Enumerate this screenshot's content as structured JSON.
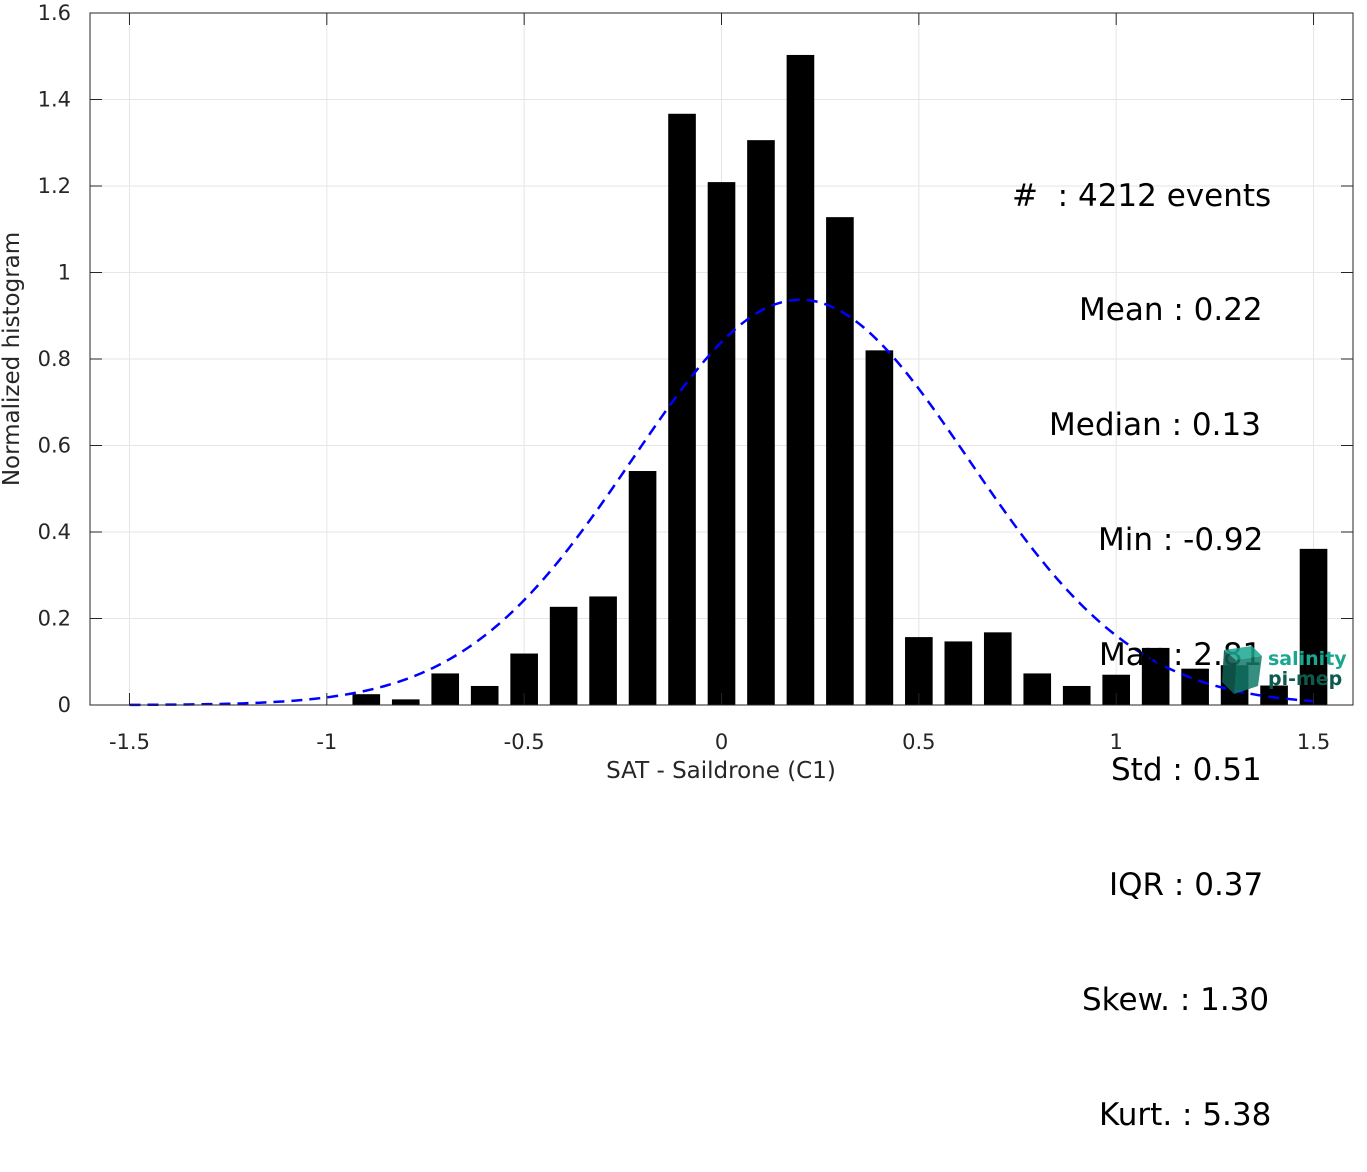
{
  "chart_data": {
    "type": "bar",
    "xlabel": "SAT - Saildrone (C1)",
    "ylabel": "Normalized histogram",
    "xlim": [
      -1.6,
      1.6
    ],
    "ylim": [
      0,
      1.6
    ],
    "grid": true,
    "xticks": [
      -1.5,
      -1,
      -0.5,
      0,
      0.5,
      1,
      1.5
    ],
    "xtick_labels": [
      "-1.5",
      "-1",
      "-0.5",
      "0",
      "0.5",
      "1",
      "1.5"
    ],
    "yticks": [
      0,
      0.2,
      0.4,
      0.6,
      0.8,
      1,
      1.2,
      1.4,
      1.6
    ],
    "ytick_labels": [
      "0",
      "0.2",
      "0.4",
      "0.6",
      "0.8",
      "1",
      "1.2",
      "1.4",
      "1.6"
    ],
    "bar_width": 0.07,
    "bars": {
      "x": [
        -0.9,
        -0.8,
        -0.7,
        -0.6,
        -0.5,
        -0.4,
        -0.3,
        -0.2,
        -0.1,
        0,
        0.1,
        0.2,
        0.3,
        0.4,
        0.5,
        0.6,
        0.7,
        0.8,
        0.9,
        1.0,
        1.1,
        1.2,
        1.3,
        1.4,
        1.5
      ],
      "values": [
        0.025,
        0.013,
        0.073,
        0.044,
        0.119,
        0.227,
        0.251,
        0.541,
        1.367,
        1.209,
        1.306,
        1.503,
        1.128,
        0.82,
        0.157,
        0.147,
        0.168,
        0.073,
        0.044,
        0.07,
        0.132,
        0.084,
        0.092,
        0.045,
        0.361
      ],
      "color": "#000000"
    },
    "fit_curve": {
      "style": "dashed",
      "color": "#0000ff",
      "distribution": "normal",
      "mean": 0.2,
      "peak": 0.937,
      "x_range": [
        -1.5,
        1.5
      ]
    },
    "stats_lines": [
      "#  : 4212 events",
      "Mean : 0.22",
      "Median : 0.13",
      "Min : -0.92",
      "Max : 2.81",
      "Std : 0.51",
      "IQR : 0.37",
      "Skew. : 1.30",
      "Kurt. : 5.38"
    ]
  },
  "logo": {
    "line1": "salinity",
    "line2": "pi-mep",
    "color": "#1aa791",
    "color_dark": "#0e5a4e"
  }
}
